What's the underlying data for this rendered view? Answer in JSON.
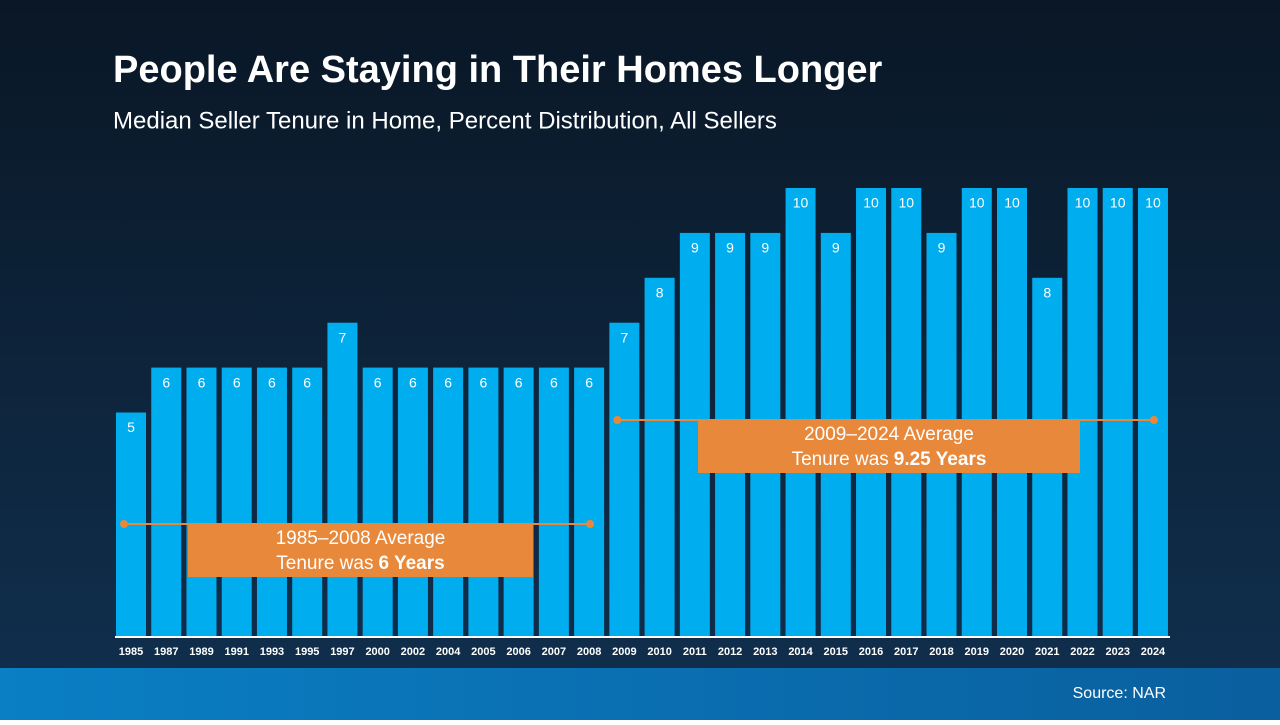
{
  "chart_data": {
    "type": "bar",
    "title": "People Are Staying in Their Homes Longer",
    "subtitle": "Median Seller Tenure in Home, Percent Distribution, All Sellers",
    "categories": [
      "1985",
      "1987",
      "1989",
      "1991",
      "1993",
      "1995",
      "1997",
      "2000",
      "2002",
      "2004",
      "2005",
      "2006",
      "2007",
      "2008",
      "2009",
      "2010",
      "2011",
      "2012",
      "2013",
      "2014",
      "2015",
      "2016",
      "2017",
      "2018",
      "2019",
      "2020",
      "2021",
      "2022",
      "2023",
      "2024"
    ],
    "values": [
      5,
      6,
      6,
      6,
      6,
      6,
      7,
      6,
      6,
      6,
      6,
      6,
      6,
      6,
      7,
      8,
      9,
      9,
      9,
      10,
      9,
      10,
      10,
      9,
      10,
      10,
      8,
      10,
      10,
      10
    ],
    "color": "#00aeef",
    "ylim": [
      0,
      10
    ],
    "annotations": [
      {
        "line1": "1985–2008 Average",
        "line2": "Tenure was",
        "emphasis": "6 Years",
        "color": "#e8883a"
      },
      {
        "line1": "2009–2024 Average",
        "line2": "Tenure was",
        "emphasis": "9.25 Years",
        "color": "#e8883a"
      }
    ],
    "source": "Source: NAR"
  }
}
